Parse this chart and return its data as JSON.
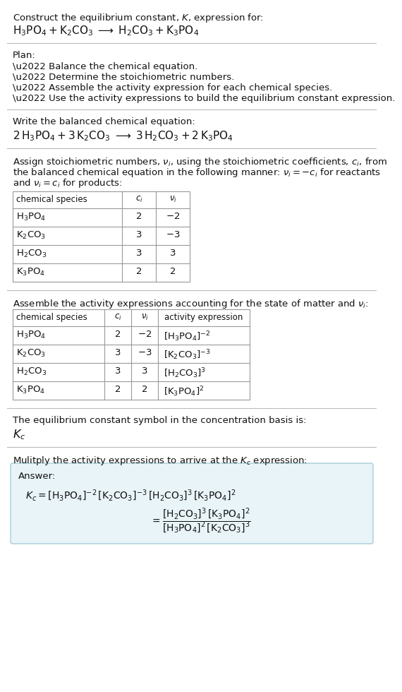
{
  "bg_color": "#ffffff",
  "title_line1": "Construct the equilibrium constant, $K$, expression for:",
  "title_line2": "$\\mathrm{H_3PO_4 + K_2CO_3 \\;\\longrightarrow\\; H_2CO_3 + K_3PO_4}$",
  "plan_header": "Plan:",
  "plan_bullets": [
    "\\u2022 Balance the chemical equation.",
    "\\u2022 Determine the stoichiometric numbers.",
    "\\u2022 Assemble the activity expression for each chemical species.",
    "\\u2022 Use the activity expressions to build the equilibrium constant expression."
  ],
  "balanced_header": "Write the balanced chemical equation:",
  "balanced_eq": "$\\mathrm{2\\,H_3PO_4 + 3\\,K_2CO_3 \\;\\longrightarrow\\; 3\\,H_2CO_3 + 2\\,K_3PO_4}$",
  "stoich_lines": [
    "Assign stoichiometric numbers, $\\nu_i$, using the stoichiometric coefficients, $c_i$, from",
    "the balanced chemical equation in the following manner: $\\nu_i = -c_i$ for reactants",
    "and $\\nu_i = c_i$ for products:"
  ],
  "table1_headers": [
    "chemical species",
    "$c_i$",
    "$\\nu_i$"
  ],
  "table1_rows": [
    [
      "$\\mathrm{H_3PO_4}$",
      "2",
      "$-2$"
    ],
    [
      "$\\mathrm{K_2CO_3}$",
      "3",
      "$-3$"
    ],
    [
      "$\\mathrm{H_2CO_3}$",
      "3",
      "3"
    ],
    [
      "$\\mathrm{K_3PO_4}$",
      "2",
      "2"
    ]
  ],
  "activity_intro": "Assemble the activity expressions accounting for the state of matter and $\\nu_i$:",
  "table2_headers": [
    "chemical species",
    "$c_i$",
    "$\\nu_i$",
    "activity expression"
  ],
  "table2_rows": [
    [
      "$\\mathrm{H_3PO_4}$",
      "2",
      "$-2$",
      "$[\\mathrm{H_3PO_4}]^{-2}$"
    ],
    [
      "$\\mathrm{K_2CO_3}$",
      "3",
      "$-3$",
      "$[\\mathrm{K_2CO_3}]^{-3}$"
    ],
    [
      "$\\mathrm{H_2CO_3}$",
      "3",
      "3",
      "$[\\mathrm{H_2CO_3}]^{3}$"
    ],
    [
      "$\\mathrm{K_3PO_4}$",
      "2",
      "2",
      "$[\\mathrm{K_3PO_4}]^{2}$"
    ]
  ],
  "kc_intro": "The equilibrium constant symbol in the concentration basis is:",
  "kc_symbol": "$K_c$",
  "multiply_intro": "Mulitply the activity expressions to arrive at the $K_c$ expression:",
  "answer_box_color": "#e8f4f8",
  "answer_box_border": "#a8ccd8",
  "table_border_color": "#999999",
  "sep_color": "#bbbbbb",
  "fs": 9.5
}
